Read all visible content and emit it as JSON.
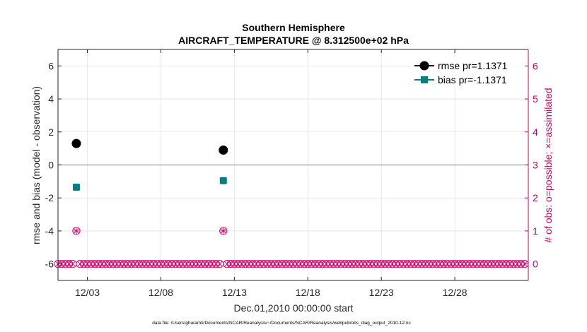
{
  "chart_data": {
    "type": "scatter",
    "title": "Southern Hemisphere",
    "subtitle": "AIRCRAFT_TEMPERATURE @ 8.312500e+02 hPa",
    "xlabel": "Dec.01,2010 00:00:00 start",
    "ylabel": "rmse and bias (model - observation)",
    "ylabel_right": "# of obs: o=possible; ×=assimilated",
    "x_unit": "day of December 2010 (1 = Dec 01 00:00)",
    "xlim": [
      1,
      33
    ],
    "ylim": [
      -7,
      7
    ],
    "ylim_right": [
      -0.5,
      6.5
    ],
    "x_ticks": [
      3,
      8,
      13,
      18,
      23,
      28
    ],
    "x_tick_labels": [
      "12/03",
      "12/08",
      "12/13",
      "12/18",
      "12/23",
      "12/28"
    ],
    "y_ticks_left": [
      -6,
      -4,
      -2,
      0,
      2,
      4,
      6
    ],
    "y_tick_labels_left": [
      "-6",
      "-4",
      "-2",
      "0",
      "2",
      "4",
      "6"
    ],
    "y_ticks_right": [
      0,
      1,
      2,
      3,
      4,
      5,
      6
    ],
    "y_tick_labels_right": [
      "0",
      "1",
      "2",
      "3",
      "4",
      "5",
      "6"
    ],
    "grid": true,
    "legend_position": "top-right",
    "series": [
      {
        "name": "rmse pr=1.1371",
        "axis": "left",
        "marker": "circle",
        "color": "#000000",
        "x": [
          2.25,
          12.25
        ],
        "y": [
          1.3,
          0.9
        ]
      },
      {
        "name": "bias pr=-1.1371",
        "axis": "left",
        "marker": "square",
        "color": "#008080",
        "x": [
          2.25,
          12.25
        ],
        "y": [
          -1.35,
          -0.95
        ]
      },
      {
        "axis": "right",
        "marker": "circle-open",
        "color": "#cc0066",
        "x_start": 1.0,
        "x_end": 32.75,
        "x_step": 0.25,
        "y_default": 0,
        "overrides": [
          {
            "x": 2.25,
            "y": 1
          },
          {
            "x": 12.25,
            "y": 1
          }
        ]
      },
      {
        "axis": "right",
        "marker": "x",
        "color": "#cc0066",
        "x_start": 1.0,
        "x_end": 32.75,
        "x_step": 0.25,
        "y_default": 0,
        "overrides": [
          {
            "x": 2.25,
            "y": 1
          },
          {
            "x": 12.25,
            "y": 1
          }
        ]
      }
    ],
    "zero_line": 0,
    "footer": "data file: /Users/gharamti/Documents/NCAR/Reanalysis/~/Documents/NCAR/Reanalysis/webpub/obs_diag_output_2010-12.nc"
  }
}
